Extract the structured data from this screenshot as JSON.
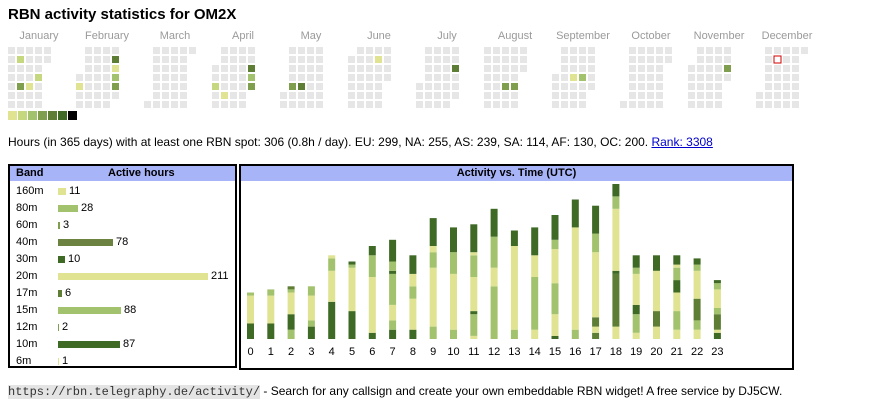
{
  "title": "RBN activity statistics for OM2X",
  "calendar": {
    "months": [
      "January",
      "February",
      "March",
      "April",
      "May",
      "June",
      "July",
      "August",
      "September",
      "October",
      "November",
      "December"
    ],
    "active_days": [
      {
        "m": 0,
        "w": 1,
        "d": 1,
        "l": 2
      },
      {
        "m": 0,
        "w": 3,
        "d": 3,
        "l": 2
      },
      {
        "m": 0,
        "w": 1,
        "d": 4,
        "l": 4
      },
      {
        "m": 0,
        "w": 2,
        "d": 4,
        "l": 1
      },
      {
        "m": 0,
        "w": 4,
        "d": 4,
        "l": 3
      },
      {
        "m": 0,
        "w": 5,
        "d": 4,
        "l": 4
      },
      {
        "m": 1,
        "w": 4,
        "d": 1,
        "l": 5
      },
      {
        "m": 1,
        "w": 5,
        "d": 1,
        "l": 5
      },
      {
        "m": 1,
        "w": 4,
        "d": 2,
        "l": 1
      },
      {
        "m": 1,
        "w": 4,
        "d": 3,
        "l": 3
      },
      {
        "m": 1,
        "w": 5,
        "d": 3,
        "l": 3
      },
      {
        "m": 1,
        "w": 0,
        "d": 4,
        "l": 1
      },
      {
        "m": 1,
        "w": 4,
        "d": 4,
        "l": 4
      },
      {
        "m": 1,
        "w": 5,
        "d": 4,
        "l": 2
      },
      {
        "m": 3,
        "w": 4,
        "d": 2,
        "l": 5
      },
      {
        "m": 3,
        "w": 5,
        "d": 2,
        "l": 5
      },
      {
        "m": 3,
        "w": 4,
        "d": 3,
        "l": 3
      },
      {
        "m": 3,
        "w": 5,
        "d": 3,
        "l": 2
      },
      {
        "m": 3,
        "w": 0,
        "d": 4,
        "l": 2
      },
      {
        "m": 3,
        "w": 4,
        "d": 4,
        "l": 4
      },
      {
        "m": 3,
        "w": 1,
        "d": 5,
        "l": 1
      },
      {
        "m": 4,
        "w": 1,
        "d": 4,
        "l": 4
      },
      {
        "m": 4,
        "w": 2,
        "d": 4,
        "l": 5
      },
      {
        "m": 5,
        "w": 3,
        "d": 1,
        "l": 1
      },
      {
        "m": 5,
        "w": 4,
        "d": 4,
        "l": 4
      },
      {
        "m": 5,
        "w": 5,
        "d": 4,
        "l": 5
      },
      {
        "m": 6,
        "w": 4,
        "d": 2,
        "l": 5
      },
      {
        "m": 6,
        "w": 5,
        "d": 2,
        "l": 5
      },
      {
        "m": 7,
        "w": 2,
        "d": 4,
        "l": 4
      },
      {
        "m": 7,
        "w": 3,
        "d": 4,
        "l": 4
      },
      {
        "m": 8,
        "w": 2,
        "d": 3,
        "l": 1
      },
      {
        "m": 8,
        "w": 3,
        "d": 3,
        "l": 3
      },
      {
        "m": 10,
        "w": 4,
        "d": 2,
        "l": 4
      },
      {
        "m": 10,
        "w": 5,
        "d": 2,
        "l": 5
      },
      {
        "m": 10,
        "w": 4,
        "d": 5,
        "l": 5
      },
      {
        "m": 10,
        "w": 5,
        "d": 5,
        "l": 5
      },
      {
        "m": 11,
        "w": 2,
        "d": 1,
        "l": 6
      }
    ],
    "legend_colors": [
      "#dfe392",
      "#c5d87f",
      "#a3c26d",
      "#7f9f4e",
      "#5e7e36",
      "#3f6a26",
      "#000000"
    ]
  },
  "summary": {
    "text": "Hours (in 365 days) with at least one RBN spot: 306 (0.8h / day). EU: 299, NA: 255, AS: 239, SA: 114, AF: 130, OC: 200.",
    "rank_link": "Rank: 3308"
  },
  "band_panel": {
    "header_band": "Band",
    "header_hours": "Active hours",
    "bands": [
      {
        "band": "160m",
        "hours": 11,
        "color": "#dfe392"
      },
      {
        "band": "80m",
        "hours": 28,
        "color": "#a3c26d"
      },
      {
        "band": "60m",
        "hours": 3,
        "color": "#7f9f4e"
      },
      {
        "band": "40m",
        "hours": 78,
        "color": "#6b8240"
      },
      {
        "band": "30m",
        "hours": 10,
        "color": "#3f6a26"
      },
      {
        "band": "20m",
        "hours": 211,
        "color": "#dfe392"
      },
      {
        "band": "17m",
        "hours": 6,
        "color": "#5e7e36"
      },
      {
        "band": "15m",
        "hours": 88,
        "color": "#a3c26d"
      },
      {
        "band": "12m",
        "hours": 2,
        "color": "#7f9f4e"
      },
      {
        "band": "10m",
        "hours": 87,
        "color": "#3f6a26"
      },
      {
        "band": "6m",
        "hours": 1,
        "color": "#dfe392"
      }
    ]
  },
  "chart_data": {
    "type": "bar",
    "title": "Activity vs. Time (UTC)",
    "xlabel": "",
    "ylabel": "",
    "categories": [
      "0",
      "1",
      "2",
      "3",
      "4",
      "5",
      "6",
      "7",
      "8",
      "9",
      "10",
      "11",
      "12",
      "13",
      "14",
      "15",
      "16",
      "17",
      "18",
      "19",
      "20",
      "21",
      "22",
      "23"
    ],
    "ylim": [
      0,
      52
    ],
    "stack_order": "bottom-to-top",
    "segments": [
      [
        [
          5,
          "#3f6a26"
        ],
        [
          9,
          "#dfe392"
        ],
        [
          1,
          "#a3c26d"
        ]
      ],
      [
        [
          5,
          "#3f6a26"
        ],
        [
          9,
          "#dfe392"
        ],
        [
          2,
          "#a3c26d"
        ]
      ],
      [
        [
          3,
          "#a3c26d"
        ],
        [
          5,
          "#3f6a26"
        ],
        [
          7,
          "#dfe392"
        ],
        [
          1,
          "#a3c26d"
        ],
        [
          1,
          "#5e7e36"
        ]
      ],
      [
        [
          4,
          "#3f6a26"
        ],
        [
          2,
          "#a3c26d"
        ],
        [
          8,
          "#dfe392"
        ],
        [
          3,
          "#a3c26d"
        ]
      ],
      [
        [
          12,
          "#3f6a26"
        ],
        [
          10,
          "#dfe392"
        ],
        [
          4,
          "#a3c26d"
        ],
        [
          1,
          "#dfe392"
        ]
      ],
      [
        [
          9,
          "#3f6a26"
        ],
        [
          14,
          "#dfe392"
        ],
        [
          1,
          "#a3c26d"
        ],
        [
          1,
          "#3f6a26"
        ]
      ],
      [
        [
          2,
          "#3f6a26"
        ],
        [
          18,
          "#dfe392"
        ],
        [
          7,
          "#a3c26d"
        ],
        [
          3,
          "#3f6a26"
        ]
      ],
      [
        [
          3,
          "#3f6a26"
        ],
        [
          3,
          "#a3c26d"
        ],
        [
          5,
          "#dfe392"
        ],
        [
          10,
          "#a3c26d"
        ],
        [
          1,
          "#3f6a26"
        ],
        [
          3,
          "#a3c26d"
        ],
        [
          7,
          "#3f6a26"
        ]
      ],
      [
        [
          3,
          "#3f6a26"
        ],
        [
          10,
          "#dfe392"
        ],
        [
          4,
          "#a3c26d"
        ],
        [
          4,
          "#dfe392"
        ],
        [
          6,
          "#3f6a26"
        ]
      ],
      [
        [
          4,
          "#a3c26d"
        ],
        [
          19,
          "#dfe392"
        ],
        [
          5,
          "#a3c26d"
        ],
        [
          2,
          "#dfe392"
        ],
        [
          9,
          "#3f6a26"
        ]
      ],
      [
        [
          3,
          "#a3c26d"
        ],
        [
          18,
          "#dfe392"
        ],
        [
          7,
          "#a3c26d"
        ],
        [
          8,
          "#3f6a26"
        ]
      ],
      [
        [
          1,
          "#dfe392"
        ],
        [
          7,
          "#a3c26d"
        ],
        [
          1,
          "#3f6a26"
        ],
        [
          11,
          "#dfe392"
        ],
        [
          7,
          "#a3c26d"
        ],
        [
          1,
          "#dfe392"
        ],
        [
          9,
          "#3f6a26"
        ]
      ],
      [
        [
          17,
          "#a3c26d"
        ],
        [
          6,
          "#dfe392"
        ],
        [
          10,
          "#a3c26d"
        ],
        [
          9,
          "#3f6a26"
        ]
      ],
      [
        [
          3,
          "#a3c26d"
        ],
        [
          27,
          "#dfe392"
        ],
        [
          5,
          "#3f6a26"
        ]
      ],
      [
        [
          3,
          "#dfe392"
        ],
        [
          17,
          "#a3c26d"
        ],
        [
          7,
          "#dfe392"
        ],
        [
          9,
          "#3f6a26"
        ]
      ],
      [
        [
          1,
          "#3f6a26"
        ],
        [
          7,
          "#dfe392"
        ],
        [
          10,
          "#a3c26d"
        ],
        [
          11,
          "#dfe392"
        ],
        [
          3,
          "#a3c26d"
        ],
        [
          8,
          "#3f6a26"
        ]
      ],
      [
        [
          3,
          "#a3c26d"
        ],
        [
          33,
          "#dfe392"
        ],
        [
          9,
          "#3f6a26"
        ]
      ],
      [
        [
          2,
          "#5e7e36"
        ],
        [
          2,
          "#dfe392"
        ],
        [
          3,
          "#5e7e36"
        ],
        [
          21,
          "#dfe392"
        ],
        [
          6,
          "#a3c26d"
        ],
        [
          9,
          "#3f6a26"
        ]
      ],
      [
        [
          4,
          "#dfe392"
        ],
        [
          17,
          "#5e7e36"
        ],
        [
          1,
          "#3f6a26"
        ],
        [
          20,
          "#dfe392"
        ],
        [
          4,
          "#a3c26d"
        ],
        [
          4,
          "#3f6a26"
        ]
      ],
      [
        [
          2,
          "#dfe392"
        ],
        [
          6,
          "#a3c26d"
        ],
        [
          3,
          "#3f6a26"
        ],
        [
          10,
          "#dfe392"
        ],
        [
          2,
          "#a3c26d"
        ],
        [
          4,
          "#3f6a26"
        ]
      ],
      [
        [
          4,
          "#dfe392"
        ],
        [
          5,
          "#5e7e36"
        ],
        [
          13,
          "#dfe392"
        ],
        [
          5,
          "#3f6a26"
        ]
      ],
      [
        [
          3,
          "#dfe392"
        ],
        [
          6,
          "#a3c26d"
        ],
        [
          6,
          "#dfe392"
        ],
        [
          4,
          "#3f6a26"
        ],
        [
          4,
          "#a3c26d"
        ],
        [
          1,
          "#dfe392"
        ],
        [
          3,
          "#3f6a26"
        ]
      ],
      [
        [
          3,
          "#dfe392"
        ],
        [
          3,
          "#a3c26d"
        ],
        [
          7,
          "#5e7e36"
        ],
        [
          9,
          "#dfe392"
        ],
        [
          2,
          "#a3c26d"
        ],
        [
          2,
          "#3f6a26"
        ]
      ],
      [
        [
          2,
          "#3f6a26"
        ],
        [
          1,
          "#dfe392"
        ],
        [
          5,
          "#5e7e36"
        ],
        [
          2,
          "#a3c26d"
        ],
        [
          6,
          "#dfe392"
        ],
        [
          2,
          "#a3c26d"
        ],
        [
          1,
          "#3f6a26"
        ]
      ]
    ]
  },
  "footer": {
    "url": "https://rbn.telegraphy.de/activity/",
    "text": " - Search for any callsign and create your own embeddable RBN widget! A free service by DJ5CW."
  }
}
